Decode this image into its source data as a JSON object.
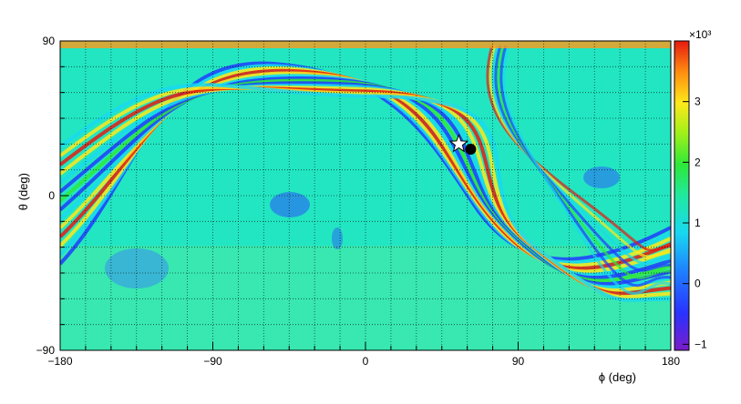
{
  "chart_data": {
    "type": "heatmap",
    "title": "",
    "xlabel": "ϕ (deg)",
    "ylabel": "θ (deg)",
    "xlim": [
      -180,
      180
    ],
    "ylim": [
      -90,
      90
    ],
    "x_ticks": [
      -180,
      -90,
      0,
      90,
      180
    ],
    "x_tick_labels": [
      "−180",
      "−90",
      "0",
      "90",
      "180"
    ],
    "y_ticks": [
      -90,
      0,
      90
    ],
    "y_tick_labels": [
      "−90",
      "0",
      "90"
    ],
    "grid": true,
    "colorbar": {
      "range": [
        -1.1,
        4.0
      ],
      "ticks": [
        -1,
        0,
        1,
        2,
        3
      ],
      "tick_labels": [
        "−1",
        "0",
        "1",
        "2",
        "3"
      ],
      "multiplier": "×10³",
      "colormap": "rainbow"
    },
    "description_values": {
      "background_level": 1.1,
      "band_peak_level": 3.4,
      "band_trough_level": 0.1
    },
    "markers": [
      {
        "type": "star",
        "x": 55,
        "y": 30,
        "color": "#ffffff"
      },
      {
        "type": "dot",
        "x": 62,
        "y": 27,
        "color": "#000000"
      }
    ]
  }
}
